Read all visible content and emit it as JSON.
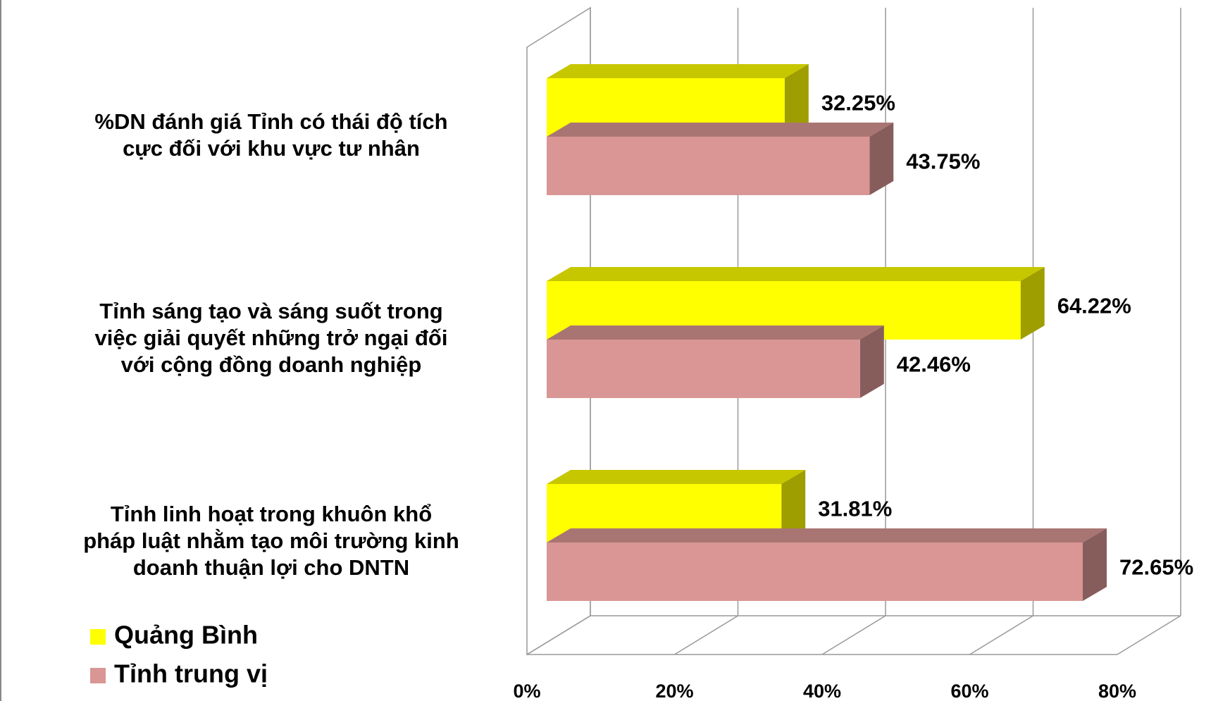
{
  "chart_data": {
    "type": "bar3d_horizontal",
    "categories": [
      "%DN đánh giá Tỉnh có thái độ tích cực đối với khu vực tư nhân",
      "Tỉnh sáng tạo và sáng suốt trong việc giải quyết những trở ngại đối với cộng đồng doanh nghiệp",
      "Tỉnh linh hoạt trong khuôn khổ pháp luật nhằm tạo môi trường kinh doanh thuận lợi cho DNTN"
    ],
    "series": [
      {
        "name": "Quảng Bình",
        "color": "#ffff00",
        "values": [
          32.25,
          64.22,
          31.81
        ],
        "value_labels": [
          "32.25%",
          "64.22%",
          "31.81%"
        ]
      },
      {
        "name": "Tỉnh trung vị",
        "color": "#d99694",
        "values": [
          43.75,
          42.46,
          72.65
        ],
        "value_labels": [
          "43.75%",
          "42.46%",
          "72.65%"
        ]
      }
    ],
    "xlim": [
      0,
      80
    ],
    "xticks": [
      {
        "value": 0,
        "label": "0%"
      },
      {
        "value": 20,
        "label": "20%"
      },
      {
        "value": 40,
        "label": "40%"
      },
      {
        "value": 60,
        "label": "60%"
      },
      {
        "value": 80,
        "label": "80%"
      }
    ],
    "grid": true,
    "legend": "bottom-left"
  }
}
